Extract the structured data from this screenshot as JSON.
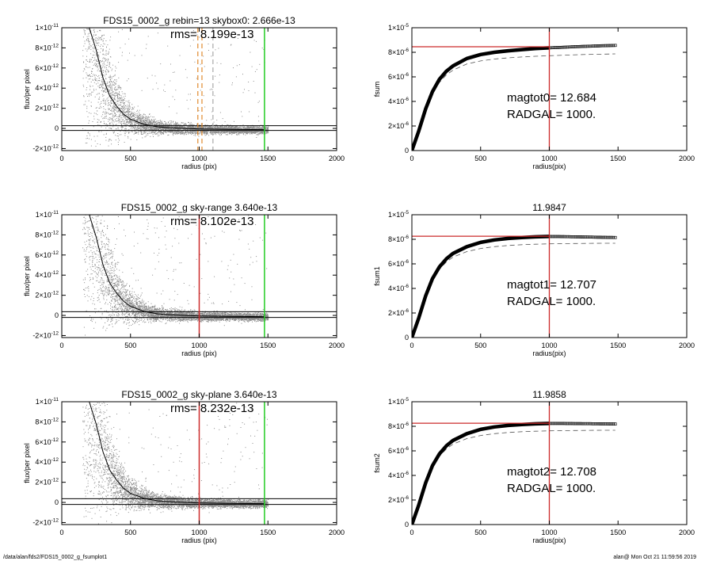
{
  "footer": {
    "path": "/data/alan/fds2/FDS15_0002_g_fsumplot1",
    "stamp": "alan@  Mon Oct 21 11:59:56 2019"
  },
  "chart_data": [
    {
      "type": "scatter",
      "title": "FDS15_0002_g rebin=13    skybox0:  2.666e-13",
      "annotations": [
        "rms= 8.199e-13"
      ],
      "xlabel": "radius (pix)",
      "ylabel": "flux/per pixel",
      "xlim": [
        0,
        2000
      ],
      "ylim": [
        -2.2e-12,
        1e-11
      ],
      "xticks": [
        0,
        500,
        1000,
        1500,
        2000
      ],
      "yticks": [
        {
          "value": 1e-11,
          "mantissa": "1",
          "exp": "-11"
        },
        {
          "value": 8e-12,
          "mantissa": "8",
          "exp": "-12"
        },
        {
          "value": 6e-12,
          "mantissa": "6",
          "exp": "-12"
        },
        {
          "value": 4e-12,
          "mantissa": "4",
          "exp": "-12"
        },
        {
          "value": 2e-12,
          "mantissa": "2",
          "exp": "-12"
        },
        {
          "value": 0,
          "mantissa": "0",
          "exp": ""
        },
        {
          "value": -2e-12,
          "mantissa": "-2",
          "exp": "-12"
        }
      ],
      "scatter_color": "#8c8c8c",
      "profile": {
        "x": [
          200,
          250,
          300,
          350,
          400,
          450,
          500,
          600,
          700,
          800,
          1000,
          1200,
          1470
        ],
        "y": [
          1e-11,
          7.8e-12,
          5e-12,
          3.2e-12,
          2.2e-12,
          1.4e-12,
          9e-13,
          4e-13,
          1.5e-13,
          5e-14,
          -5e-14,
          -1e-13,
          -1.2e-13
        ]
      },
      "hlines": [
        {
          "y": 2.666e-13,
          "color": "#000000"
        },
        {
          "y": -2e-13,
          "color": "#000000"
        }
      ],
      "vlines": [
        {
          "x": 990,
          "color": "#e08a2e",
          "style": "dashed"
        },
        {
          "x": 1020,
          "color": "#e08a2e",
          "style": "dashed"
        },
        {
          "x": 1100,
          "color": "#a8a8a8",
          "style": "dashed"
        },
        {
          "x": 1475,
          "color": "#22cc22",
          "style": "solid"
        }
      ]
    },
    {
      "type": "line",
      "title": "",
      "annotations": [
        "magtot0=  12.684",
        "RADGAL=   1000."
      ],
      "xlabel": "radius(pix)",
      "ylabel": "fsum",
      "xlim": [
        0,
        2000
      ],
      "ylim": [
        0,
        1e-05
      ],
      "xticks": [
        0,
        500,
        1000,
        1500,
        2000
      ],
      "yticks": [
        {
          "value": 1e-05,
          "mantissa": "1",
          "exp": "-5"
        },
        {
          "value": 8e-06,
          "mantissa": "8",
          "exp": "-6"
        },
        {
          "value": 6e-06,
          "mantissa": "6",
          "exp": "-6"
        },
        {
          "value": 4e-06,
          "mantissa": "4",
          "exp": "-6"
        },
        {
          "value": 2e-06,
          "mantissa": "2",
          "exp": "-6"
        },
        {
          "value": 0,
          "mantissa": "0",
          "exp": ""
        }
      ],
      "curve": {
        "x": [
          0,
          50,
          100,
          150,
          200,
          250,
          300,
          400,
          500,
          600,
          700,
          800,
          900,
          1000,
          1100,
          1200,
          1300,
          1400,
          1480
        ],
        "y": [
          0,
          1.6e-06,
          3.4e-06,
          4.8e-06,
          5.8e-06,
          6.45e-06,
          6.9e-06,
          7.5e-06,
          7.82e-06,
          8e-06,
          8.12e-06,
          8.22e-06,
          8.3e-06,
          8.36e-06,
          8.41e-06,
          8.46e-06,
          8.5e-06,
          8.54e-06,
          8.56e-06
        ]
      },
      "dashed_curve": {
        "x": [
          0,
          50,
          100,
          150,
          200,
          250,
          300,
          400,
          500,
          600,
          700,
          800,
          900,
          1000,
          1100,
          1200,
          1300,
          1400,
          1480
        ],
        "y": [
          0,
          1.55e-06,
          3.25e-06,
          4.6e-06,
          5.55e-06,
          6.15e-06,
          6.55e-06,
          7.05e-06,
          7.3e-06,
          7.45e-06,
          7.55e-06,
          7.62e-06,
          7.68e-06,
          7.72e-06,
          7.76e-06,
          7.8e-06,
          7.83e-06,
          7.85e-06,
          7.87e-06
        ]
      },
      "markers_from": 1000,
      "hline": {
        "y": 8.45e-06,
        "color": "#cc2a2a"
      },
      "vline": {
        "x": 1000,
        "color": "#cc2a2a"
      }
    },
    {
      "type": "scatter",
      "title": "FDS15_0002_g sky-range  3.640e-13",
      "annotations": [
        "rms= 8.102e-13"
      ],
      "xlabel": "radius (pix)",
      "ylabel": "flux/per pixel",
      "xlim": [
        0,
        2000
      ],
      "ylim": [
        -2.2e-12,
        1e-11
      ],
      "xticks": [
        0,
        500,
        1000,
        1500,
        2000
      ],
      "yticks": [
        {
          "value": 1e-11,
          "mantissa": "1",
          "exp": "-11"
        },
        {
          "value": 8e-12,
          "mantissa": "8",
          "exp": "-12"
        },
        {
          "value": 6e-12,
          "mantissa": "6",
          "exp": "-12"
        },
        {
          "value": 4e-12,
          "mantissa": "4",
          "exp": "-12"
        },
        {
          "value": 2e-12,
          "mantissa": "2",
          "exp": "-12"
        },
        {
          "value": 0,
          "mantissa": "0",
          "exp": ""
        },
        {
          "value": -2e-12,
          "mantissa": "-2",
          "exp": "-12"
        }
      ],
      "scatter_color": "#8c8c8c",
      "profile": {
        "x": [
          200,
          250,
          300,
          350,
          400,
          450,
          500,
          600,
          700,
          800,
          1000,
          1200,
          1470
        ],
        "y": [
          1e-11,
          7.8e-12,
          5e-12,
          3.2e-12,
          2.2e-12,
          1.4e-12,
          9e-13,
          4e-13,
          1.5e-13,
          5e-14,
          -5e-14,
          -1e-13,
          -1.2e-13
        ]
      },
      "hlines": [
        {
          "y": 3.64e-13,
          "color": "#000000"
        },
        {
          "y": -2e-13,
          "color": "#000000"
        }
      ],
      "vlines": [
        {
          "x": 1000,
          "color": "#cc2a2a",
          "style": "solid"
        },
        {
          "x": 1475,
          "color": "#22cc22",
          "style": "solid"
        }
      ]
    },
    {
      "type": "line",
      "title": "11.9847",
      "annotations": [
        "magtot1=  12.707",
        "RADGAL=   1000."
      ],
      "xlabel": "radius(pix)",
      "ylabel": "fsum1",
      "xlim": [
        0,
        2000
      ],
      "ylim": [
        0,
        1e-05
      ],
      "xticks": [
        0,
        500,
        1000,
        1500,
        2000
      ],
      "yticks": [
        {
          "value": 1e-05,
          "mantissa": "1",
          "exp": "-5"
        },
        {
          "value": 8e-06,
          "mantissa": "8",
          "exp": "-6"
        },
        {
          "value": 6e-06,
          "mantissa": "6",
          "exp": "-6"
        },
        {
          "value": 4e-06,
          "mantissa": "4",
          "exp": "-6"
        },
        {
          "value": 2e-06,
          "mantissa": "2",
          "exp": "-6"
        },
        {
          "value": 0,
          "mantissa": "0",
          "exp": ""
        }
      ],
      "curve": {
        "x": [
          0,
          50,
          100,
          150,
          200,
          250,
          300,
          400,
          500,
          600,
          700,
          800,
          900,
          1000,
          1100,
          1200,
          1300,
          1400,
          1480
        ],
        "y": [
          0,
          1.6e-06,
          3.4e-06,
          4.8e-06,
          5.75e-06,
          6.4e-06,
          6.85e-06,
          7.4e-06,
          7.75e-06,
          7.95e-06,
          8.07e-06,
          8.15e-06,
          8.2e-06,
          8.23e-06,
          8.22e-06,
          8.2e-06,
          8.18e-06,
          8.16e-06,
          8.15e-06
        ]
      },
      "dashed_curve": {
        "x": [
          0,
          50,
          100,
          150,
          200,
          250,
          300,
          400,
          500,
          600,
          700,
          800,
          900,
          1000,
          1100,
          1200,
          1300,
          1400,
          1480
        ],
        "y": [
          0,
          1.55e-06,
          3.25e-06,
          4.6e-06,
          5.55e-06,
          6.15e-06,
          6.55e-06,
          7e-06,
          7.25e-06,
          7.4e-06,
          7.5e-06,
          7.56e-06,
          7.6e-06,
          7.63e-06,
          7.65e-06,
          7.66e-06,
          7.67e-06,
          7.68e-06,
          7.68e-06
        ]
      },
      "markers_from": 1000,
      "hline": {
        "y": 8.25e-06,
        "color": "#cc2a2a"
      },
      "vline": {
        "x": 1000,
        "color": "#cc2a2a"
      }
    },
    {
      "type": "scatter",
      "title": "FDS15_0002_g sky-plane  3.640e-13",
      "annotations": [
        "rms= 8.232e-13"
      ],
      "xlabel": "radius (pix)",
      "ylabel": "flux/per pixel",
      "xlim": [
        0,
        2000
      ],
      "ylim": [
        -2.2e-12,
        1e-11
      ],
      "xticks": [
        0,
        500,
        1000,
        1500,
        2000
      ],
      "yticks": [
        {
          "value": 1e-11,
          "mantissa": "1",
          "exp": "-11"
        },
        {
          "value": 8e-12,
          "mantissa": "8",
          "exp": "-12"
        },
        {
          "value": 6e-12,
          "mantissa": "6",
          "exp": "-12"
        },
        {
          "value": 4e-12,
          "mantissa": "4",
          "exp": "-12"
        },
        {
          "value": 2e-12,
          "mantissa": "2",
          "exp": "-12"
        },
        {
          "value": 0,
          "mantissa": "0",
          "exp": ""
        },
        {
          "value": -2e-12,
          "mantissa": "-2",
          "exp": "-12"
        }
      ],
      "scatter_color": "#8c8c8c",
      "profile": {
        "x": [
          200,
          250,
          300,
          350,
          400,
          450,
          500,
          600,
          700,
          800,
          1000,
          1200,
          1470
        ],
        "y": [
          1e-11,
          7.8e-12,
          5e-12,
          3.2e-12,
          2.2e-12,
          1.4e-12,
          9e-13,
          4e-13,
          1.5e-13,
          5e-14,
          -5e-14,
          -1e-13,
          -1.2e-13
        ]
      },
      "hlines": [
        {
          "y": 3.64e-13,
          "color": "#000000"
        },
        {
          "y": -2e-13,
          "color": "#000000"
        }
      ],
      "vlines": [
        {
          "x": 1000,
          "color": "#cc2a2a",
          "style": "solid"
        },
        {
          "x": 1475,
          "color": "#22cc22",
          "style": "solid"
        }
      ]
    },
    {
      "type": "line",
      "title": "11.9858",
      "annotations": [
        "magtot2=  12.708",
        "RADGAL=   1000."
      ],
      "xlabel": "radius(pix)",
      "ylabel": "fsum2",
      "xlim": [
        0,
        2000
      ],
      "ylim": [
        0,
        1e-05
      ],
      "xticks": [
        0,
        500,
        1000,
        1500,
        2000
      ],
      "yticks": [
        {
          "value": 1e-05,
          "mantissa": "1",
          "exp": "-5"
        },
        {
          "value": 8e-06,
          "mantissa": "8",
          "exp": "-6"
        },
        {
          "value": 6e-06,
          "mantissa": "6",
          "exp": "-6"
        },
        {
          "value": 4e-06,
          "mantissa": "4",
          "exp": "-6"
        },
        {
          "value": 2e-06,
          "mantissa": "2",
          "exp": "-6"
        },
        {
          "value": 0,
          "mantissa": "0",
          "exp": ""
        }
      ],
      "curve": {
        "x": [
          0,
          50,
          100,
          150,
          200,
          250,
          300,
          400,
          500,
          600,
          700,
          800,
          900,
          1000,
          1100,
          1200,
          1300,
          1400,
          1480
        ],
        "y": [
          0,
          1.6e-06,
          3.4e-06,
          4.8e-06,
          5.75e-06,
          6.4e-06,
          6.85e-06,
          7.4e-06,
          7.75e-06,
          7.95e-06,
          8.07e-06,
          8.15e-06,
          8.2e-06,
          8.23e-06,
          8.23e-06,
          8.22e-06,
          8.21e-06,
          8.2e-06,
          8.19e-06
        ]
      },
      "dashed_curve": {
        "x": [
          0,
          50,
          100,
          150,
          200,
          250,
          300,
          400,
          500,
          600,
          700,
          800,
          900,
          1000,
          1100,
          1200,
          1300,
          1400,
          1480
        ],
        "y": [
          0,
          1.55e-06,
          3.25e-06,
          4.6e-06,
          5.55e-06,
          6.15e-06,
          6.55e-06,
          7e-06,
          7.25e-06,
          7.4e-06,
          7.5e-06,
          7.56e-06,
          7.6e-06,
          7.63e-06,
          7.65e-06,
          7.66e-06,
          7.67e-06,
          7.68e-06,
          7.68e-06
        ]
      },
      "markers_from": 1000,
      "hline": {
        "y": 8.25e-06,
        "color": "#cc2a2a"
      },
      "vline": {
        "x": 1000,
        "color": "#cc2a2a"
      }
    }
  ]
}
